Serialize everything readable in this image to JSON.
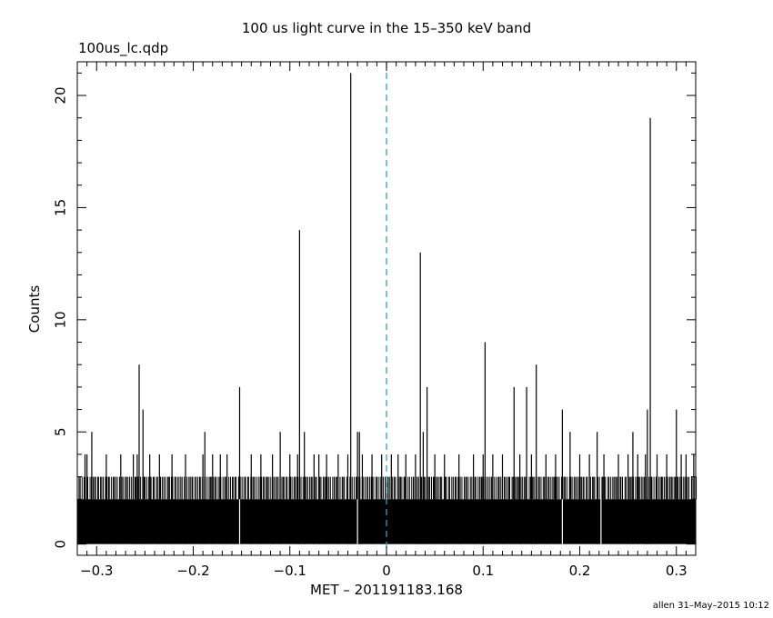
{
  "title": "100 us light curve in the 15–350 keV band",
  "filename": "100us_lc.qdp",
  "footer": "allen 31–May–2015 10:12",
  "colors": {
    "data": "#000000",
    "trigger_line": "#2aa1c0"
  },
  "chart_data": {
    "type": "histogram",
    "title": "100 us light curve in the 15–350 keV band",
    "xlabel": "MET – 201191183.168",
    "ylabel": "Counts",
    "xlim": [
      -0.32,
      0.32
    ],
    "ylim": [
      -0.5,
      21.5
    ],
    "xticks": [
      -0.3,
      -0.2,
      -0.1,
      0,
      0.1,
      0.2,
      0.3
    ],
    "xtick_labels": [
      "−0.3",
      "−0.2",
      "−0.1",
      "0",
      "0.1",
      "0.2",
      "0.3"
    ],
    "yticks": [
      0,
      5,
      10,
      15,
      20
    ],
    "ytick_labels": [
      "0",
      "5",
      "10",
      "15",
      "20"
    ],
    "bin_width": 0.0001,
    "baseline_band": [
      0,
      2
    ],
    "background_max": 3,
    "reference_line": {
      "x": 0,
      "style": "dashed"
    },
    "peaks": [
      {
        "x": -0.312,
        "y": 4
      },
      {
        "x": -0.31,
        "y": 4
      },
      {
        "x": -0.305,
        "y": 5
      },
      {
        "x": -0.29,
        "y": 4
      },
      {
        "x": -0.275,
        "y": 4
      },
      {
        "x": -0.262,
        "y": 4
      },
      {
        "x": -0.258,
        "y": 4
      },
      {
        "x": -0.256,
        "y": 8
      },
      {
        "x": -0.252,
        "y": 6
      },
      {
        "x": -0.245,
        "y": 4
      },
      {
        "x": -0.235,
        "y": 4
      },
      {
        "x": -0.222,
        "y": 4
      },
      {
        "x": -0.208,
        "y": 4
      },
      {
        "x": -0.19,
        "y": 4
      },
      {
        "x": -0.188,
        "y": 5
      },
      {
        "x": -0.18,
        "y": 4
      },
      {
        "x": -0.172,
        "y": 4
      },
      {
        "x": -0.165,
        "y": 4
      },
      {
        "x": -0.152,
        "y": 7
      },
      {
        "x": -0.14,
        "y": 4
      },
      {
        "x": -0.13,
        "y": 4
      },
      {
        "x": -0.118,
        "y": 4
      },
      {
        "x": -0.11,
        "y": 5
      },
      {
        "x": -0.1,
        "y": 4
      },
      {
        "x": -0.092,
        "y": 4
      },
      {
        "x": -0.09,
        "y": 14
      },
      {
        "x": -0.085,
        "y": 5
      },
      {
        "x": -0.075,
        "y": 4
      },
      {
        "x": -0.07,
        "y": 4
      },
      {
        "x": -0.062,
        "y": 4
      },
      {
        "x": -0.05,
        "y": 4
      },
      {
        "x": -0.04,
        "y": 4
      },
      {
        "x": -0.037,
        "y": 21
      },
      {
        "x": -0.03,
        "y": 5
      },
      {
        "x": -0.028,
        "y": 5
      },
      {
        "x": -0.025,
        "y": 4
      },
      {
        "x": -0.015,
        "y": 4
      },
      {
        "x": -0.005,
        "y": 4
      },
      {
        "x": 0.005,
        "y": 4
      },
      {
        "x": 0.012,
        "y": 4
      },
      {
        "x": 0.02,
        "y": 4
      },
      {
        "x": 0.03,
        "y": 4
      },
      {
        "x": 0.035,
        "y": 13
      },
      {
        "x": 0.038,
        "y": 5
      },
      {
        "x": 0.042,
        "y": 7
      },
      {
        "x": 0.05,
        "y": 4
      },
      {
        "x": 0.06,
        "y": 4
      },
      {
        "x": 0.075,
        "y": 4
      },
      {
        "x": 0.09,
        "y": 4
      },
      {
        "x": 0.1,
        "y": 4
      },
      {
        "x": 0.102,
        "y": 9
      },
      {
        "x": 0.11,
        "y": 4
      },
      {
        "x": 0.12,
        "y": 4
      },
      {
        "x": 0.132,
        "y": 7
      },
      {
        "x": 0.138,
        "y": 4
      },
      {
        "x": 0.145,
        "y": 7
      },
      {
        "x": 0.15,
        "y": 4
      },
      {
        "x": 0.155,
        "y": 8
      },
      {
        "x": 0.165,
        "y": 4
      },
      {
        "x": 0.175,
        "y": 4
      },
      {
        "x": 0.182,
        "y": 6
      },
      {
        "x": 0.19,
        "y": 5
      },
      {
        "x": 0.2,
        "y": 4
      },
      {
        "x": 0.21,
        "y": 4
      },
      {
        "x": 0.218,
        "y": 5
      },
      {
        "x": 0.225,
        "y": 4
      },
      {
        "x": 0.24,
        "y": 4
      },
      {
        "x": 0.25,
        "y": 4
      },
      {
        "x": 0.255,
        "y": 5
      },
      {
        "x": 0.26,
        "y": 4
      },
      {
        "x": 0.268,
        "y": 4
      },
      {
        "x": 0.27,
        "y": 6
      },
      {
        "x": 0.273,
        "y": 19
      },
      {
        "x": 0.28,
        "y": 4
      },
      {
        "x": 0.29,
        "y": 4
      },
      {
        "x": 0.3,
        "y": 6
      },
      {
        "x": 0.305,
        "y": 4
      },
      {
        "x": 0.31,
        "y": 4
      },
      {
        "x": 0.318,
        "y": 4
      }
    ],
    "zero_count_gaps": [
      -0.152,
      -0.03,
      0.182,
      0.222
    ],
    "grid": false
  }
}
